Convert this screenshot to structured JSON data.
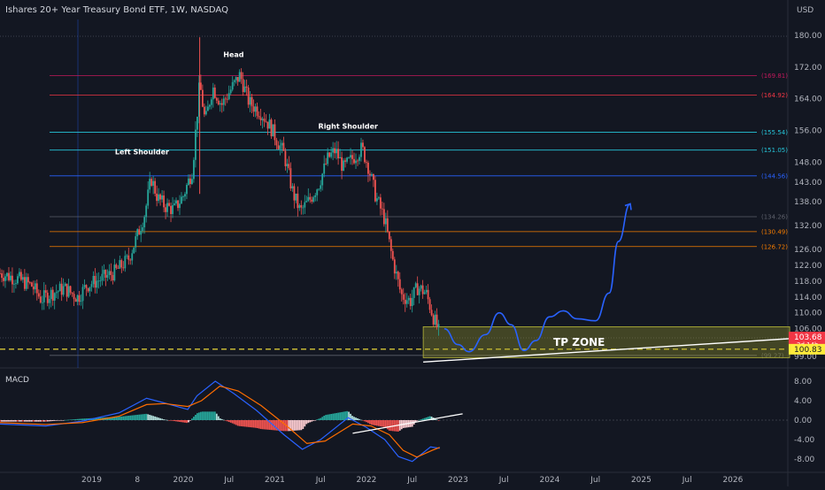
{
  "chart_data": {
    "type": "candlestick",
    "title": "Ishares 20+ Year Treasury Bond ETF, 1W, NASDAQ",
    "currency_label": "USD",
    "price_axis": {
      "ylim": [
        97,
        184
      ],
      "ticks": [
        "180.00",
        "172.00",
        "164.00",
        "156.00",
        "148.00",
        "143.00",
        "138.00",
        "132.00",
        "126.00",
        "122.00",
        "118.00",
        "114.00",
        "110.00",
        "106.00",
        "99.00"
      ]
    },
    "time_axis": {
      "labels": [
        "2019",
        "8",
        "2020",
        "Jul",
        "2021",
        "Jul",
        "2022",
        "Jul",
        "2023",
        "Jul",
        "2024",
        "Jul",
        "2025",
        "Jul",
        "2026"
      ],
      "start_year": 2018.0,
      "end_year": 2026.6
    },
    "price_series": [
      {
        "t": 2018.0,
        "v": 120.0
      },
      {
        "t": 2018.2,
        "v": 118.5
      },
      {
        "t": 2018.35,
        "v": 116.8
      },
      {
        "t": 2018.45,
        "v": 113.4
      },
      {
        "t": 2018.55,
        "v": 114.8
      },
      {
        "t": 2018.7,
        "v": 116.2
      },
      {
        "t": 2018.85,
        "v": 113.9
      },
      {
        "t": 2018.95,
        "v": 117.0
      },
      {
        "t": 2019.1,
        "v": 118.5
      },
      {
        "t": 2019.25,
        "v": 120.2
      },
      {
        "t": 2019.4,
        "v": 123.5
      },
      {
        "t": 2019.5,
        "v": 129.5
      },
      {
        "t": 2019.58,
        "v": 135.0
      },
      {
        "t": 2019.65,
        "v": 144.0
      },
      {
        "t": 2019.72,
        "v": 139.0
      },
      {
        "t": 2019.8,
        "v": 137.0
      },
      {
        "t": 2019.9,
        "v": 136.0
      },
      {
        "t": 2020.0,
        "v": 139.5
      },
      {
        "t": 2020.1,
        "v": 146.0
      },
      {
        "t": 2020.18,
        "v": 168.0
      },
      {
        "t": 2020.24,
        "v": 158.0
      },
      {
        "t": 2020.32,
        "v": 167.0
      },
      {
        "t": 2020.42,
        "v": 162.5
      },
      {
        "t": 2020.55,
        "v": 167.5
      },
      {
        "t": 2020.62,
        "v": 170.0
      },
      {
        "t": 2020.72,
        "v": 163.0
      },
      {
        "t": 2020.85,
        "v": 160.5
      },
      {
        "t": 2020.95,
        "v": 157.0
      },
      {
        "t": 2021.1,
        "v": 150.0
      },
      {
        "t": 2021.2,
        "v": 140.0
      },
      {
        "t": 2021.28,
        "v": 135.5
      },
      {
        "t": 2021.38,
        "v": 138.5
      },
      {
        "t": 2021.48,
        "v": 142.5
      },
      {
        "t": 2021.58,
        "v": 149.0
      },
      {
        "t": 2021.66,
        "v": 151.0
      },
      {
        "t": 2021.75,
        "v": 146.5
      },
      {
        "t": 2021.85,
        "v": 149.0
      },
      {
        "t": 2021.95,
        "v": 151.5
      },
      {
        "t": 2022.02,
        "v": 147.0
      },
      {
        "t": 2022.1,
        "v": 139.5
      },
      {
        "t": 2022.2,
        "v": 133.5
      },
      {
        "t": 2022.28,
        "v": 124.0
      },
      {
        "t": 2022.38,
        "v": 114.5
      },
      {
        "t": 2022.48,
        "v": 113.0
      },
      {
        "t": 2022.56,
        "v": 116.5
      },
      {
        "t": 2022.65,
        "v": 115.0
      },
      {
        "t": 2022.73,
        "v": 109.0
      },
      {
        "t": 2022.8,
        "v": 104.5
      }
    ],
    "price_levels": [
      {
        "value": 169.81,
        "label": "(169.81)",
        "color": "#c2185b"
      },
      {
        "value": 164.92,
        "label": "(164.92)",
        "color": "#f23645"
      },
      {
        "value": 155.54,
        "label": "(155.54)",
        "color": "#26c6da"
      },
      {
        "value": 151.05,
        "label": "(151.05)",
        "color": "#26c6da"
      },
      {
        "value": 144.56,
        "label": "(144.56)",
        "color": "#2962ff"
      },
      {
        "value": 134.26,
        "label": "(134.26)",
        "color": "#5d606b"
      },
      {
        "value": 130.49,
        "label": "(130.49)",
        "color": "#f57c00"
      },
      {
        "value": 126.72,
        "label": "(126.72)",
        "color": "#f57c00"
      },
      {
        "value": 99.27,
        "label": "(99.27)",
        "color": "#5d606b"
      }
    ],
    "current_price": {
      "value": 103.68,
      "label": "103.68",
      "countdown": "3d 14h",
      "color": "#f23645"
    },
    "yellow_level": {
      "value": 100.83,
      "label": "100.83",
      "color": "#ffeb3b"
    },
    "annotations": [
      {
        "text": "Head",
        "t": 2020.55,
        "v": 174.5
      },
      {
        "text": "Left Shoulder",
        "t": 2019.55,
        "v": 150.0
      },
      {
        "text": "Right Shoulder",
        "t": 2021.8,
        "v": 156.5
      }
    ],
    "tp_zone": {
      "label": "TP ZONE",
      "t_start": 2022.62,
      "t_end": 2026.62,
      "v_top": 106.5,
      "v_bottom": 98.7
    },
    "trendline": {
      "t1": 2022.62,
      "v1": 97.6,
      "t2": 2026.62,
      "v2": 103.5
    },
    "projection_path": [
      {
        "t": 2022.85,
        "v": 106.0
      },
      {
        "t": 2023.0,
        "v": 102.0
      },
      {
        "t": 2023.12,
        "v": 100.2
      },
      {
        "t": 2023.3,
        "v": 104.5
      },
      {
        "t": 2023.45,
        "v": 110.0
      },
      {
        "t": 2023.58,
        "v": 107.0
      },
      {
        "t": 2023.72,
        "v": 100.5
      },
      {
        "t": 2023.85,
        "v": 103.0
      },
      {
        "t": 2024.0,
        "v": 109.0
      },
      {
        "t": 2024.15,
        "v": 110.5
      },
      {
        "t": 2024.3,
        "v": 108.5
      },
      {
        "t": 2024.5,
        "v": 108.0
      },
      {
        "t": 2024.65,
        "v": 115.0
      },
      {
        "t": 2024.75,
        "v": 128.0
      },
      {
        "t": 2024.88,
        "v": 137.5
      }
    ],
    "macd": {
      "label": "MACD",
      "ylim": [
        -10,
        10
      ],
      "ticks": [
        "8.00",
        "4.00",
        "0.00",
        "-4.00",
        "-8.00"
      ],
      "macd_line": [
        {
          "t": 2018.0,
          "v": -0.8
        },
        {
          "t": 2018.5,
          "v": -1.2
        },
        {
          "t": 2018.9,
          "v": -0.2
        },
        {
          "t": 2019.3,
          "v": 1.5
        },
        {
          "t": 2019.6,
          "v": 4.5
        },
        {
          "t": 2019.8,
          "v": 3.5
        },
        {
          "t": 2020.05,
          "v": 2.2
        },
        {
          "t": 2020.15,
          "v": 5.0
        },
        {
          "t": 2020.35,
          "v": 8.0
        },
        {
          "t": 2020.55,
          "v": 5.5
        },
        {
          "t": 2020.8,
          "v": 2.0
        },
        {
          "t": 2021.1,
          "v": -3.0
        },
        {
          "t": 2021.3,
          "v": -6.0
        },
        {
          "t": 2021.5,
          "v": -4.0
        },
        {
          "t": 2021.8,
          "v": 0.5
        },
        {
          "t": 2022.0,
          "v": -1.5
        },
        {
          "t": 2022.2,
          "v": -4.0
        },
        {
          "t": 2022.35,
          "v": -7.5
        },
        {
          "t": 2022.5,
          "v": -8.5
        },
        {
          "t": 2022.7,
          "v": -5.5
        },
        {
          "t": 2022.8,
          "v": -5.8
        }
      ],
      "signal_line": [
        {
          "t": 2018.0,
          "v": -0.5
        },
        {
          "t": 2018.5,
          "v": -0.9
        },
        {
          "t": 2018.9,
          "v": -0.5
        },
        {
          "t": 2019.3,
          "v": 0.8
        },
        {
          "t": 2019.6,
          "v": 3.2
        },
        {
          "t": 2019.8,
          "v": 3.4
        },
        {
          "t": 2020.05,
          "v": 2.8
        },
        {
          "t": 2020.2,
          "v": 4.0
        },
        {
          "t": 2020.4,
          "v": 7.0
        },
        {
          "t": 2020.6,
          "v": 6.0
        },
        {
          "t": 2020.85,
          "v": 3.0
        },
        {
          "t": 2021.15,
          "v": -1.5
        },
        {
          "t": 2021.35,
          "v": -4.8
        },
        {
          "t": 2021.55,
          "v": -4.3
        },
        {
          "t": 2021.85,
          "v": -0.8
        },
        {
          "t": 2022.05,
          "v": -1.2
        },
        {
          "t": 2022.25,
          "v": -3.0
        },
        {
          "t": 2022.4,
          "v": -6.2
        },
        {
          "t": 2022.55,
          "v": -7.6
        },
        {
          "t": 2022.72,
          "v": -6.2
        },
        {
          "t": 2022.8,
          "v": -5.6
        }
      ],
      "hist_trendline": {
        "t1": 2021.85,
        "v1": -2.7,
        "t2": 2023.05,
        "v2": 1.3
      }
    }
  }
}
